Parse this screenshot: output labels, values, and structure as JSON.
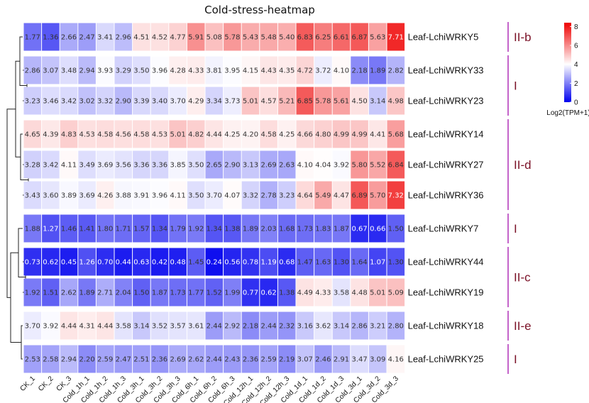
{
  "chart_data": {
    "type": "heatmap",
    "title": "Cold-stress-heatmap",
    "columns": [
      "CK_1",
      "CK_2",
      "CK_3",
      "Cold_1h_1",
      "Cold_1h_2",
      "Cold_1h_3",
      "Cold_3h_1",
      "Cold_3h_2",
      "Cold_3h_3",
      "Cold_6h_1",
      "Cold_6h_2",
      "Cold_6h_3",
      "Cold_12h_1",
      "Cold_12h_2",
      "Cold_12h_3",
      "Cold_1d_1",
      "Cold_1d_2",
      "Cold_1d_3",
      "Cold_3d_1",
      "Cold_3d_2",
      "Cold_3d_3"
    ],
    "rows": [
      {
        "name": "Leaf-LchiWRKY5",
        "values": [
          1.77,
          1.36,
          2.66,
          2.47,
          3.41,
          2.96,
          4.51,
          4.52,
          4.77,
          5.91,
          5.08,
          5.78,
          5.43,
          5.48,
          5.4,
          6.83,
          6.25,
          6.61,
          6.87,
          5.63,
          7.71
        ]
      },
      {
        "name": "Leaf-LchiWRKY33",
        "values": [
          2.86,
          3.07,
          3.48,
          2.94,
          3.93,
          3.29,
          3.5,
          3.96,
          4.28,
          4.33,
          3.81,
          3.95,
          4.15,
          4.43,
          4.35,
          4.72,
          3.72,
          4.1,
          2.18,
          1.89,
          2.82
        ]
      },
      {
        "name": "Leaf-LchiWRKY23",
        "values": [
          3.23,
          3.46,
          3.42,
          3.02,
          3.32,
          2.9,
          3.39,
          3.4,
          3.7,
          4.29,
          3.34,
          3.73,
          5.01,
          4.57,
          5.21,
          6.85,
          5.78,
          5.61,
          4.5,
          3.14,
          4.98
        ]
      },
      {
        "name": "Leaf-LchiWRKY14",
        "values": [
          4.65,
          4.39,
          4.83,
          4.53,
          4.58,
          4.56,
          4.58,
          4.53,
          5.01,
          4.82,
          4.44,
          4.25,
          4.2,
          4.58,
          4.25,
          4.66,
          4.8,
          4.99,
          4.99,
          4.41,
          5.68
        ]
      },
      {
        "name": "Leaf-LchiWRKY27",
        "values": [
          3.28,
          3.42,
          4.11,
          3.49,
          3.69,
          3.56,
          3.36,
          3.36,
          3.85,
          3.5,
          2.65,
          2.9,
          3.13,
          2.69,
          2.63,
          4.1,
          4.04,
          3.92,
          5.8,
          5.52,
          6.84
        ]
      },
      {
        "name": "Leaf-LchiWRKY36",
        "values": [
          3.43,
          3.6,
          3.89,
          3.69,
          4.26,
          3.88,
          3.91,
          3.96,
          4.11,
          3.5,
          3.7,
          4.07,
          3.32,
          2.78,
          3.23,
          4.64,
          5.49,
          4.47,
          6.89,
          5.7,
          7.32
        ]
      },
      {
        "name": "Leaf-LchiWRKY7",
        "values": [
          1.88,
          1.27,
          1.46,
          1.41,
          1.8,
          1.71,
          1.57,
          1.34,
          1.79,
          1.92,
          1.34,
          1.38,
          1.89,
          2.03,
          1.68,
          1.73,
          1.83,
          1.87,
          0.67,
          0.66,
          1.5
        ]
      },
      {
        "name": "Leaf-LchiWRKY44",
        "values": [
          0.73,
          0.62,
          0.45,
          1.26,
          0.7,
          0.44,
          0.63,
          0.42,
          0.48,
          1.45,
          0.24,
          0.56,
          0.78,
          1.19,
          0.68,
          1.47,
          1.63,
          1.3,
          1.64,
          1.07,
          1.3
        ]
      },
      {
        "name": "Leaf-LchiWRKY19",
        "values": [
          1.92,
          1.51,
          2.62,
          1.89,
          2.71,
          2.04,
          1.5,
          1.87,
          1.73,
          1.77,
          1.52,
          1.99,
          0.77,
          0.62,
          1.38,
          4.49,
          4.33,
          3.58,
          4.48,
          5.01,
          5.09
        ]
      },
      {
        "name": "Leaf-LchiWRKY18",
        "values": [
          3.7,
          3.92,
          4.44,
          4.31,
          4.44,
          3.58,
          3.14,
          3.52,
          3.57,
          3.61,
          2.44,
          2.92,
          2.18,
          2.44,
          2.32,
          3.16,
          3.62,
          3.14,
          2.86,
          3.21,
          2.8
        ]
      },
      {
        "name": "Leaf-LchiWRKY25",
        "values": [
          2.53,
          2.58,
          2.94,
          2.2,
          2.59,
          2.47,
          2.51,
          2.36,
          2.69,
          2.62,
          2.44,
          2.43,
          2.36,
          2.59,
          2.19,
          3.07,
          2.46,
          2.91,
          3.47,
          3.09,
          4.16
        ]
      }
    ],
    "row_blocks": [
      [
        0
      ],
      [
        1,
        2
      ],
      [
        3,
        4,
        5
      ],
      [
        6
      ],
      [
        7,
        8
      ],
      [
        9
      ],
      [
        10
      ]
    ],
    "groups": [
      {
        "label": "II-b",
        "rows": [
          0,
          0
        ]
      },
      {
        "label": "I",
        "rows": [
          1,
          2
        ]
      },
      {
        "label": "II-d",
        "rows": [
          3,
          5
        ]
      },
      {
        "label": "I",
        "rows": [
          6,
          6
        ]
      },
      {
        "label": "II-c",
        "rows": [
          7,
          8
        ]
      },
      {
        "label": "II-e",
        "rows": [
          9,
          9
        ]
      },
      {
        "label": "I",
        "rows": [
          10,
          10
        ]
      }
    ],
    "color_scale": {
      "min": 0,
      "mid": 4,
      "max": 8.4,
      "low": "#0000ee",
      "mid_color": "#ffffff",
      "high": "#ee0000"
    },
    "legend": {
      "title": "Log2(TPM+1)",
      "ticks": [
        0,
        2,
        4,
        6,
        8
      ],
      "placement": "top-right"
    }
  }
}
